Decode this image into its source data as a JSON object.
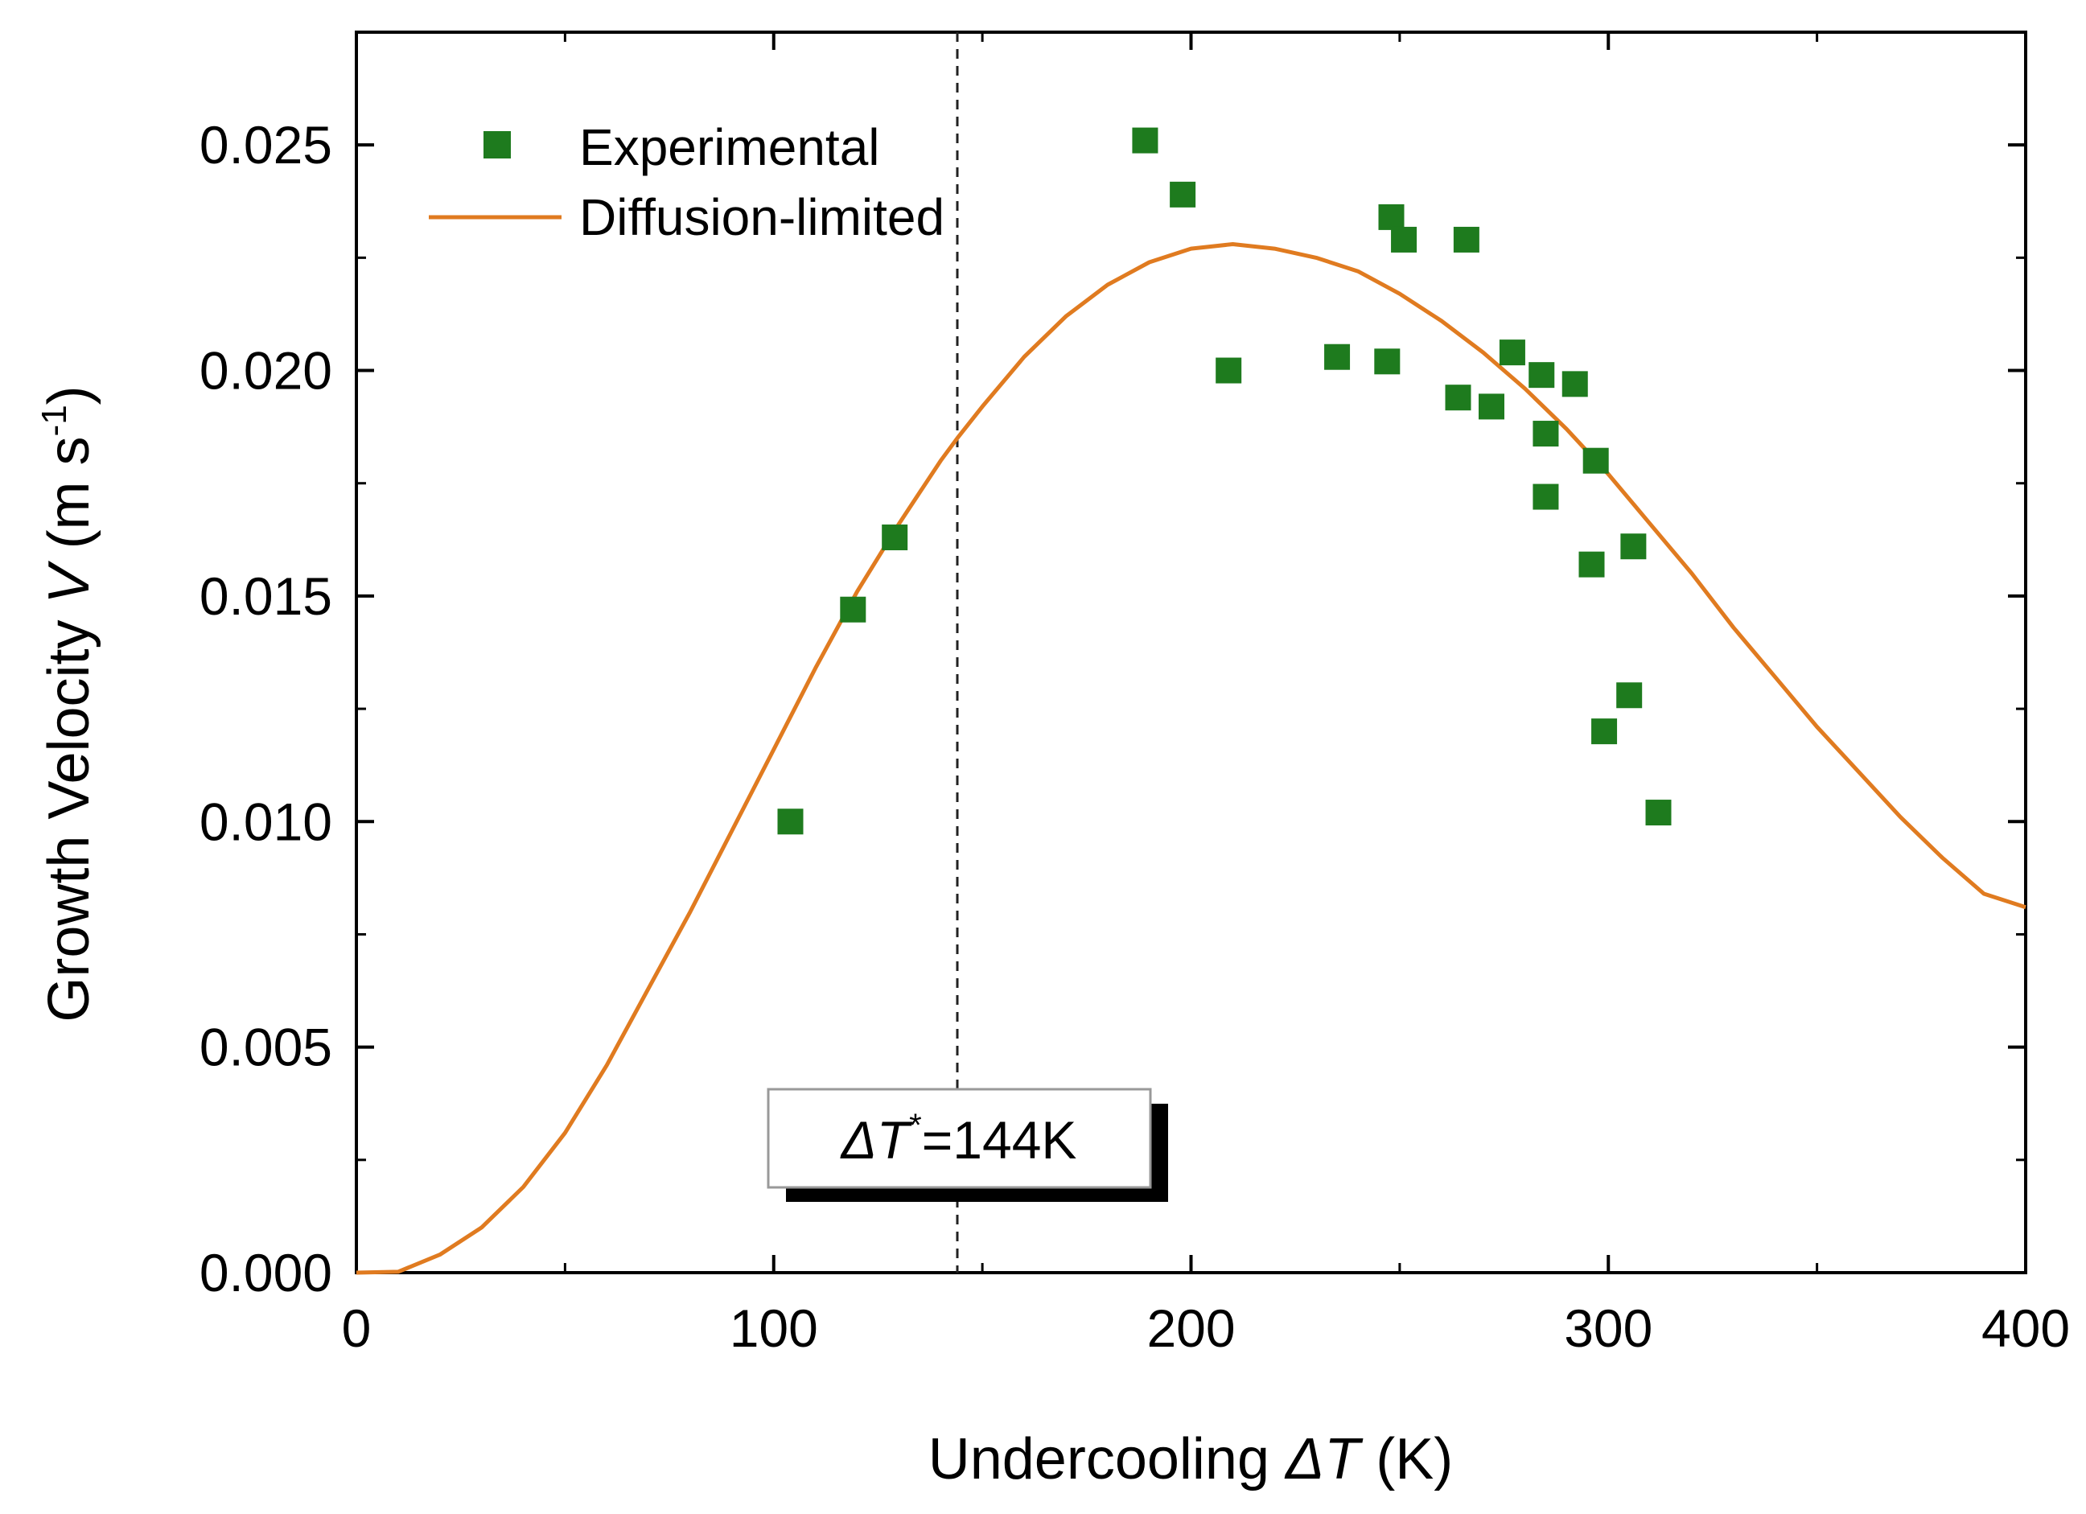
{
  "chart_data": {
    "type": "scatter",
    "xlabel": {
      "prefix": "Undercooling ",
      "symbol": "ΔT",
      "suffix": " (K)"
    },
    "ylabel": {
      "prefix": "Growth Velocity ",
      "symbol": "V",
      "unit_open": " (m s",
      "unit_exp": "-1",
      "unit_close": ")"
    },
    "xlim": [
      0,
      400
    ],
    "ylim": [
      0,
      0.0275
    ],
    "x_ticks": [
      {
        "value": 0,
        "label": "0"
      },
      {
        "value": 100,
        "label": "100"
      },
      {
        "value": 200,
        "label": "200"
      },
      {
        "value": 300,
        "label": "300"
      },
      {
        "value": 400,
        "label": "400"
      }
    ],
    "y_ticks": [
      {
        "value": 0.0,
        "label": "0.000"
      },
      {
        "value": 0.005,
        "label": "0.005"
      },
      {
        "value": 0.01,
        "label": "0.010"
      },
      {
        "value": 0.015,
        "label": "0.015"
      },
      {
        "value": 0.02,
        "label": "0.020"
      },
      {
        "value": 0.025,
        "label": "0.025"
      }
    ],
    "x_minor_step": 50,
    "y_minor_step": 0.0025,
    "grid": false,
    "legend_position": "top-left",
    "series": [
      {
        "name": "Experimental",
        "type": "scatter",
        "marker": "square",
        "color": "#1e7b1e",
        "points": [
          [
            104,
            0.01
          ],
          [
            119,
            0.0147
          ],
          [
            129,
            0.0163
          ],
          [
            189,
            0.0251
          ],
          [
            198,
            0.0239
          ],
          [
            209,
            0.02
          ],
          [
            235,
            0.0203
          ],
          [
            247,
            0.0202
          ],
          [
            248,
            0.0234
          ],
          [
            251,
            0.0229
          ],
          [
            264,
            0.0194
          ],
          [
            266,
            0.0229
          ],
          [
            272,
            0.0192
          ],
          [
            277,
            0.0204
          ],
          [
            284,
            0.0199
          ],
          [
            285,
            0.0186
          ],
          [
            285,
            0.0172
          ],
          [
            292,
            0.0197
          ],
          [
            296,
            0.0157
          ],
          [
            297,
            0.018
          ],
          [
            299,
            0.012
          ],
          [
            305,
            0.0128
          ],
          [
            306,
            0.0161
          ],
          [
            312,
            0.0102
          ]
        ]
      },
      {
        "name": "Diffusion-limited",
        "type": "line",
        "color": "#e07b20",
        "points": [
          [
            0,
            0.0
          ],
          [
            10,
            2e-05
          ],
          [
            20,
            0.0004
          ],
          [
            30,
            0.001
          ],
          [
            40,
            0.0019
          ],
          [
            50,
            0.0031
          ],
          [
            60,
            0.0046
          ],
          [
            70,
            0.0063
          ],
          [
            80,
            0.008
          ],
          [
            90,
            0.0098
          ],
          [
            100,
            0.0116
          ],
          [
            110,
            0.0134
          ],
          [
            120,
            0.0151
          ],
          [
            130,
            0.0166
          ],
          [
            140,
            0.018
          ],
          [
            144,
            0.0185
          ],
          [
            150,
            0.0192
          ],
          [
            160,
            0.0203
          ],
          [
            170,
            0.0212
          ],
          [
            180,
            0.0219
          ],
          [
            190,
            0.0224
          ],
          [
            200,
            0.0227
          ],
          [
            210,
            0.0228
          ],
          [
            220,
            0.0227
          ],
          [
            230,
            0.0225
          ],
          [
            240,
            0.0222
          ],
          [
            250,
            0.0217
          ],
          [
            260,
            0.0211
          ],
          [
            270,
            0.0204
          ],
          [
            280,
            0.0196
          ],
          [
            290,
            0.0187
          ],
          [
            300,
            0.0177
          ],
          [
            310,
            0.0166
          ],
          [
            320,
            0.0155
          ],
          [
            330,
            0.0143
          ],
          [
            340,
            0.0132
          ],
          [
            350,
            0.0121
          ],
          [
            360,
            0.0111
          ],
          [
            370,
            0.0101
          ],
          [
            380,
            0.0092
          ],
          [
            390,
            0.0084
          ],
          [
            400,
            0.0081
          ]
        ]
      }
    ],
    "reference_lines": [
      {
        "axis": "x",
        "value": 144,
        "style": "dashed"
      }
    ],
    "annotation": {
      "symbol": "ΔT",
      "superscript": "*",
      "text": "=144K"
    }
  }
}
